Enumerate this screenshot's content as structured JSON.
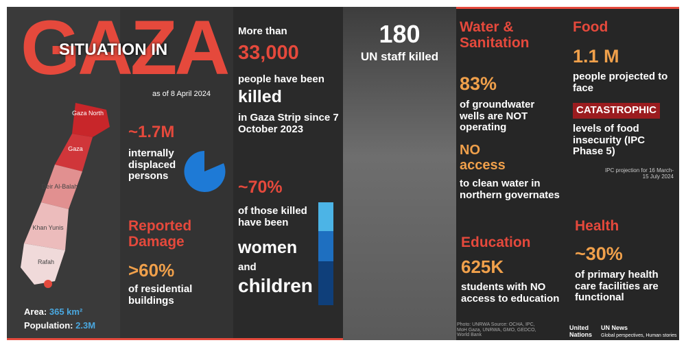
{
  "header": {
    "title_big": "GAZA",
    "title_small": "SITUATION IN",
    "date": "as of 8 April 2024"
  },
  "map": {
    "regions": [
      "Gaza North",
      "Gaza",
      "Deir Al-Balah",
      "Khan Yunis",
      "Rafah"
    ],
    "area_label": "Area:",
    "area": "365 km²",
    "population_label": "Population:",
    "population": "2.3M"
  },
  "killed": {
    "prefix": "More than",
    "number": "33,000",
    "line1": "people have been",
    "emphasis": "killed",
    "line2": "in Gaza Strip since 7 October 2023"
  },
  "staff": {
    "number": "180",
    "label": "UN staff killed"
  },
  "displaced": {
    "number": "~1.7M",
    "label": "internally displaced persons"
  },
  "women_children": {
    "number": "~70%",
    "line1": "of those killed have been",
    "women": "women",
    "and": "and",
    "children": "children"
  },
  "damage": {
    "title": "Reported Damage",
    "number": ">60%",
    "label": "of residential buildings"
  },
  "water": {
    "title": "Water & Sanitation",
    "number": "83%",
    "label": "of groundwater wells are NOT operating",
    "access": "NO access",
    "access_label": "to clean water in northern governates"
  },
  "education": {
    "title": "Education",
    "number": "625K",
    "label": "students with NO access to education"
  },
  "food": {
    "title": "Food",
    "number": "1.1 M",
    "line1": "people projected to face",
    "badge": "CATASTROPHIC",
    "line2": "levels of food insecurity (IPC Phase 5)",
    "note": "IPC projection for 16 March- 15 July 2024"
  },
  "health": {
    "title": "Health",
    "number": "~30%",
    "label": "of primary health care facilities are functional"
  },
  "footer": {
    "credits": "Photo: UNRWA Source: OCHA, IPC, MoH Gaza, UNRWA, GMO, GEDCO, World Bank",
    "un": "United Nations",
    "news": "UN News",
    "tagline": "Global perspectives, Human stories"
  }
}
